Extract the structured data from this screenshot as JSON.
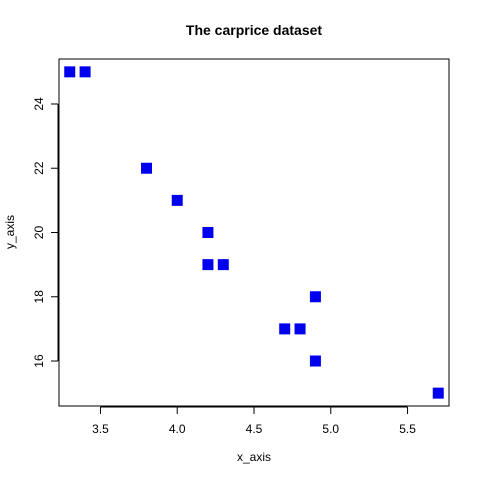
{
  "chart_data": {
    "type": "scatter",
    "title": "The carprice dataset",
    "xlabel": "x_axis",
    "ylabel": "y_axis",
    "xlim": [
      3.23,
      5.77
    ],
    "ylim": [
      14.6,
      25.4
    ],
    "xticks": [
      3.5,
      4.0,
      4.5,
      5.0,
      5.5
    ],
    "xtick_labels": [
      "3.5",
      "4.0",
      "4.5",
      "5.0",
      "5.5"
    ],
    "yticks": [
      16,
      18,
      20,
      22,
      24
    ],
    "ytick_labels": [
      "16",
      "18",
      "20",
      "22",
      "24"
    ],
    "grid": false,
    "marker": "square",
    "color": "#0000ee",
    "points": [
      {
        "x": 3.3,
        "y": 25
      },
      {
        "x": 3.4,
        "y": 25
      },
      {
        "x": 3.8,
        "y": 22
      },
      {
        "x": 4.0,
        "y": 21
      },
      {
        "x": 4.2,
        "y": 20
      },
      {
        "x": 4.2,
        "y": 19
      },
      {
        "x": 4.3,
        "y": 19
      },
      {
        "x": 4.9,
        "y": 18
      },
      {
        "x": 4.7,
        "y": 17
      },
      {
        "x": 4.8,
        "y": 17
      },
      {
        "x": 4.9,
        "y": 16
      },
      {
        "x": 5.7,
        "y": 15
      }
    ]
  }
}
